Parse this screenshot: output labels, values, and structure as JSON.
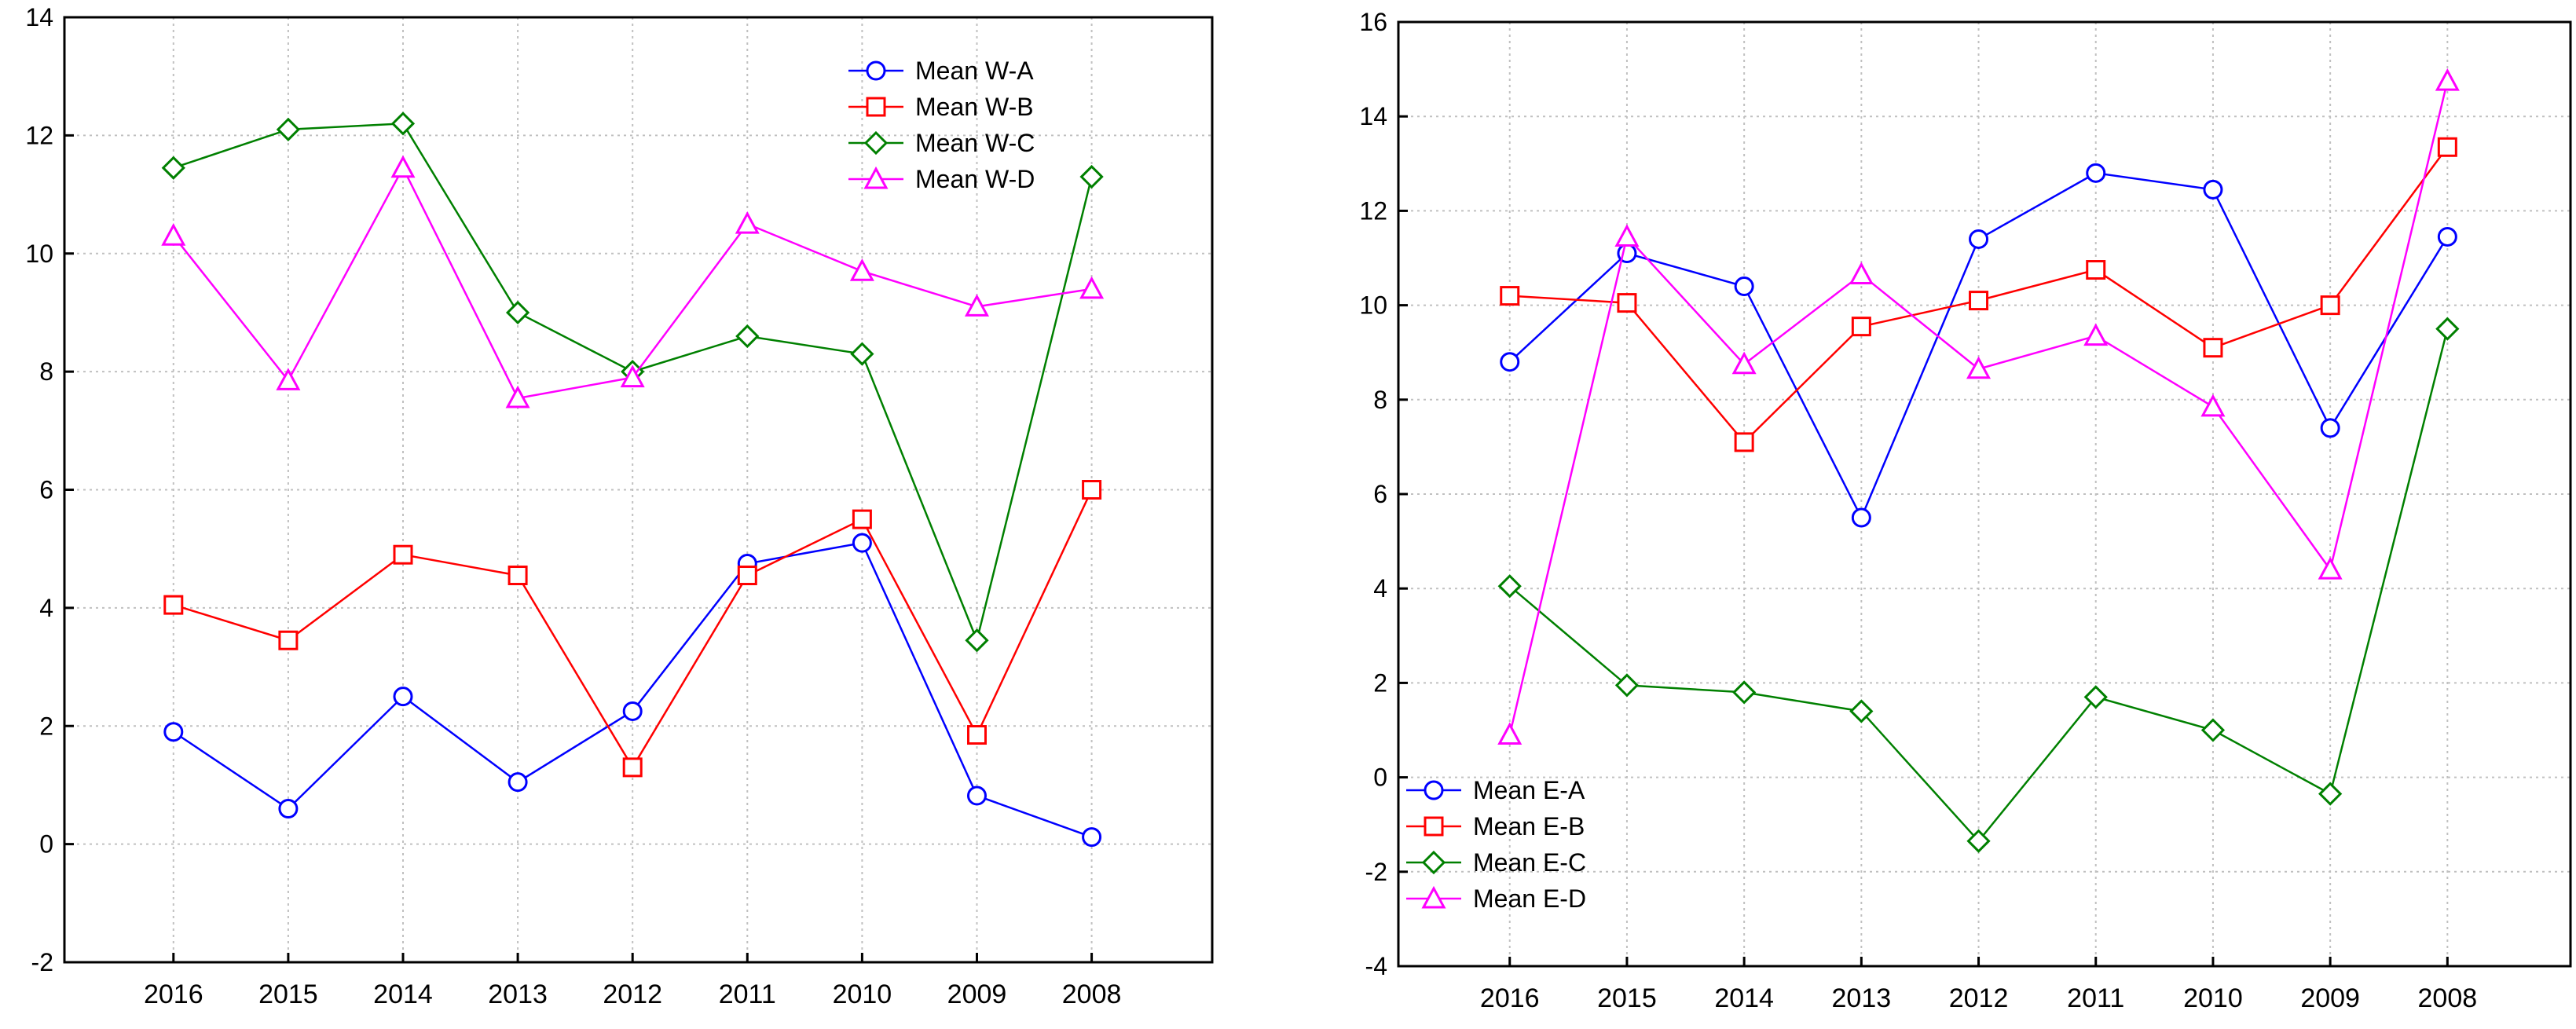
{
  "chart_data": [
    {
      "type": "line",
      "title": "",
      "xlabel": "",
      "ylabel": "",
      "categories": [
        "2016",
        "2015",
        "2014",
        "2013",
        "2012",
        "2011",
        "2010",
        "2009",
        "2008"
      ],
      "ylim": [
        -2,
        14
      ],
      "yticks": [
        -2,
        0,
        2,
        4,
        6,
        8,
        10,
        12,
        14
      ],
      "grid": true,
      "legend_position": "top-right",
      "series": [
        {
          "name": "Mean W-A",
          "color": "#0000ff",
          "marker": "circle",
          "values": [
            1.9,
            0.6,
            2.5,
            1.05,
            2.25,
            4.75,
            5.1,
            0.82,
            0.12
          ]
        },
        {
          "name": "Mean W-B",
          "color": "#ff0000",
          "marker": "square",
          "values": [
            4.05,
            3.45,
            4.9,
            4.55,
            1.3,
            4.55,
            5.5,
            1.85,
            6.0
          ]
        },
        {
          "name": "Mean W-C",
          "color": "#008000",
          "marker": "diamond",
          "values": [
            11.45,
            12.1,
            12.2,
            9.0,
            8.0,
            8.6,
            8.3,
            3.45,
            11.3
          ]
        },
        {
          "name": "Mean W-D",
          "color": "#ff00ff",
          "marker": "triangle",
          "values": [
            10.3,
            7.85,
            11.45,
            7.55,
            7.9,
            10.5,
            9.7,
            9.1,
            9.4
          ]
        }
      ]
    },
    {
      "type": "line",
      "title": "",
      "xlabel": "",
      "ylabel": "",
      "categories": [
        "2016",
        "2015",
        "2014",
        "2013",
        "2012",
        "2011",
        "2010",
        "2009",
        "2008"
      ],
      "ylim": [
        -4,
        16
      ],
      "yticks": [
        -4,
        -2,
        0,
        2,
        4,
        6,
        8,
        10,
        12,
        14,
        16
      ],
      "grid": true,
      "legend_position": "bottom-left",
      "series": [
        {
          "name": "Mean E-A",
          "color": "#0000ff",
          "marker": "circle",
          "values": [
            8.8,
            11.1,
            10.4,
            5.5,
            11.4,
            12.8,
            12.45,
            7.4,
            11.45
          ]
        },
        {
          "name": "Mean E-B",
          "color": "#ff0000",
          "marker": "square",
          "values": [
            10.2,
            10.05,
            7.1,
            9.55,
            10.1,
            10.75,
            9.1,
            10.0,
            13.35
          ]
        },
        {
          "name": "Mean E-C",
          "color": "#008000",
          "marker": "diamond",
          "values": [
            4.05,
            1.95,
            1.8,
            1.4,
            -1.35,
            1.7,
            1.0,
            -0.35,
            9.5
          ]
        },
        {
          "name": "Mean E-D",
          "color": "#ff00ff",
          "marker": "triangle",
          "values": [
            0.9,
            11.45,
            8.75,
            10.65,
            8.65,
            9.35,
            7.85,
            4.4,
            14.75
          ]
        }
      ]
    }
  ]
}
